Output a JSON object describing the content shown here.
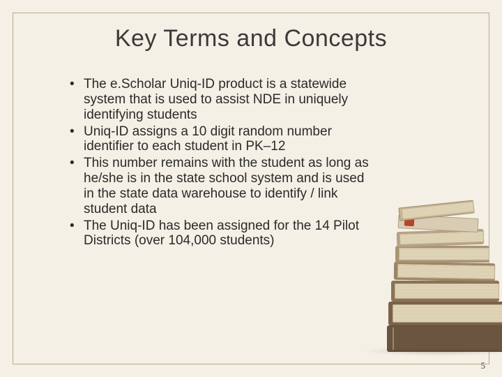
{
  "title": "Key Terms and Concepts",
  "bullets": [
    "The e.Scholar Uniq-ID product is a statewide system that is used to assist NDE in uniquely identifying students",
    "Uniq-ID assigns a 10 digit random number identifier to each student in PK–12",
    "This number remains with the student as long as he/she is in the state school system and is used in the state data warehouse to identify / link student data",
    "The Uniq-ID has been assigned for the 14 Pilot Districts (over 104,000 students)"
  ],
  "page_number": "5",
  "colors": {
    "background": "#f5f0e6",
    "frame_border": "#b8a888",
    "text": "#2a2a2a"
  }
}
